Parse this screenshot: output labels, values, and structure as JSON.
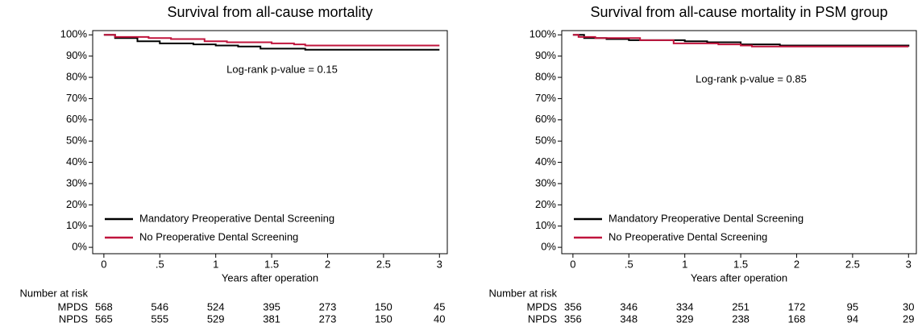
{
  "chart_data": [
    {
      "type": "step",
      "title": "Survival from all-cause mortality",
      "annotation": "Log-rank p-value = 0.15",
      "x_label": "Years after operation",
      "xlim": [
        -0.1,
        3.07
      ],
      "ylim": [
        -3,
        102
      ],
      "xticks": [
        0,
        {
          "value": 0.5,
          "label": ".5"
        },
        1,
        1.5,
        2,
        2.5,
        3
      ],
      "yticks": [
        {
          "value": 0,
          "label": "0%"
        },
        {
          "value": 10,
          "label": "10%"
        },
        {
          "value": 20,
          "label": "20%"
        },
        {
          "value": 30,
          "label": "30%"
        },
        {
          "value": 40,
          "label": "40%"
        },
        {
          "value": 50,
          "label": "50%"
        },
        {
          "value": 60,
          "label": "60%"
        },
        {
          "value": 70,
          "label": "70%"
        },
        {
          "value": 80,
          "label": "80%"
        },
        {
          "value": 90,
          "label": "90%"
        },
        {
          "value": 100,
          "label": "100%"
        }
      ],
      "series": [
        {
          "name": "Mandatory Preoperative Dental Screening",
          "color": "#000000",
          "x": [
            0,
            0.1,
            0.3,
            0.5,
            0.8,
            1,
            1.2,
            1.4,
            1.8,
            3
          ],
          "values": [
            100,
            98.5,
            97,
            96,
            95.5,
            95,
            94.5,
            93.5,
            93,
            93
          ]
        },
        {
          "name": "No Preoperative Dental Screening",
          "color": "#c0143c",
          "x": [
            0,
            0.1,
            0.4,
            0.6,
            0.9,
            1.1,
            1.5,
            1.7,
            1.8,
            3
          ],
          "values": [
            100,
            99,
            98.5,
            98,
            97,
            96.5,
            96,
            95.5,
            95,
            95
          ]
        }
      ],
      "risk_table": {
        "title": "Number at risk",
        "rows": [
          {
            "name": "MPDS",
            "values": [
              568,
              546,
              524,
              395,
              273,
              150,
              45
            ]
          },
          {
            "name": "NPDS",
            "values": [
              565,
              555,
              529,
              381,
              273,
              150,
              40
            ]
          }
        ]
      }
    },
    {
      "type": "step",
      "title": "Survival from all-cause mortality in PSM group",
      "annotation": "Log-rank p-value = 0.85",
      "x_label": "Years after operation",
      "xlim": [
        -0.1,
        3.07
      ],
      "ylim": [
        -3,
        102
      ],
      "xticks": [
        0,
        {
          "value": 0.5,
          "label": ".5"
        },
        1,
        1.5,
        2,
        2.5,
        3
      ],
      "yticks": [
        {
          "value": 0,
          "label": "0%"
        },
        {
          "value": 10,
          "label": "10%"
        },
        {
          "value": 20,
          "label": "20%"
        },
        {
          "value": 30,
          "label": "30%"
        },
        {
          "value": 40,
          "label": "40%"
        },
        {
          "value": 50,
          "label": "50%"
        },
        {
          "value": 60,
          "label": "60%"
        },
        {
          "value": 70,
          "label": "70%"
        },
        {
          "value": 80,
          "label": "80%"
        },
        {
          "value": 90,
          "label": "90%"
        },
        {
          "value": 100,
          "label": "100%"
        }
      ],
      "series": [
        {
          "name": "Mandatory Preoperative Dental Screening",
          "color": "#000000",
          "x": [
            0,
            0.1,
            0.3,
            0.5,
            1,
            1.2,
            1.5,
            1.85,
            3
          ],
          "values": [
            100,
            98.5,
            98,
            97.5,
            97,
            96.5,
            95.5,
            95,
            94.5
          ]
        },
        {
          "name": "No Preoperative Dental Screening",
          "color": "#c0143c",
          "x": [
            0,
            0.05,
            0.2,
            0.6,
            0.9,
            1.3,
            1.5,
            1.6,
            3
          ],
          "values": [
            100,
            99,
            98.5,
            97.5,
            96,
            95.5,
            95,
            94.5,
            94.5
          ]
        }
      ],
      "risk_table": {
        "title": "Number at risk",
        "rows": [
          {
            "name": "MPDS",
            "values": [
              356,
              346,
              334,
              251,
              172,
              95,
              30
            ]
          },
          {
            "name": "NPDS",
            "values": [
              356,
              348,
              329,
              238,
              168,
              94,
              29
            ]
          }
        ]
      }
    }
  ]
}
